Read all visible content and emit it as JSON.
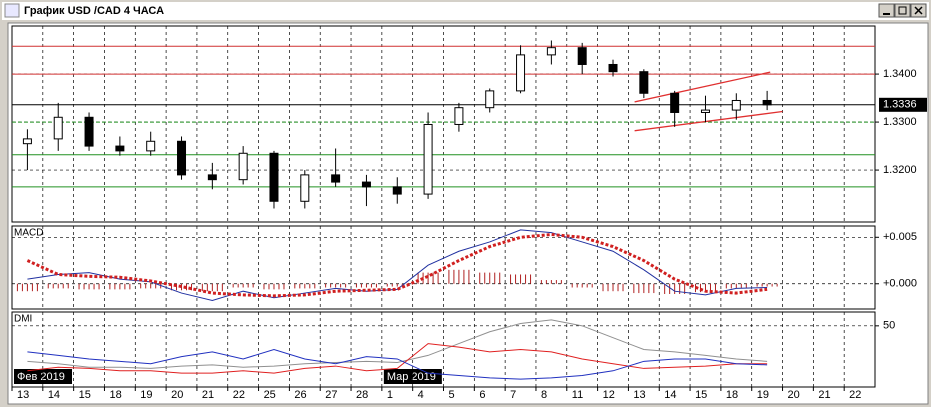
{
  "window_title": "График USD /CAD  4 ЧАСА",
  "chart_data": [
    {
      "type": "candlestick",
      "categories": [
        "13",
        "14",
        "15",
        "18",
        "19",
        "20",
        "21",
        "22",
        "25",
        "26",
        "27",
        "28",
        "1",
        "4",
        "5",
        "6",
        "7",
        "8",
        "11",
        "12",
        "13",
        "14",
        "15",
        "18",
        "19",
        "20",
        "21",
        "22"
      ],
      "month_labels": [
        {
          "index": 0,
          "label": "Фев 2019"
        },
        {
          "index": 12,
          "label": "Мар 2019"
        }
      ],
      "open": [
        1.3255,
        1.3265,
        1.331,
        1.325,
        1.324,
        1.326,
        1.319,
        1.318,
        1.3235,
        1.3135,
        1.319,
        1.3175,
        1.3165,
        1.315,
        1.3295,
        1.333,
        1.3365,
        1.344,
        1.3455,
        1.342,
        1.3405,
        1.336,
        1.332,
        1.3325,
        1.3345,
        null,
        null,
        null
      ],
      "high": [
        1.3285,
        1.334,
        1.332,
        1.327,
        1.328,
        1.327,
        1.3215,
        1.325,
        1.324,
        1.32,
        1.3245,
        1.319,
        1.3185,
        1.332,
        1.334,
        1.337,
        1.346,
        1.347,
        1.3465,
        1.343,
        1.341,
        1.3365,
        1.3355,
        1.336,
        1.3365,
        null,
        null,
        null
      ],
      "low": [
        1.32,
        1.324,
        1.324,
        1.323,
        1.323,
        1.318,
        1.316,
        1.317,
        1.312,
        1.312,
        1.3165,
        1.3125,
        1.313,
        1.314,
        1.328,
        1.332,
        1.336,
        1.342,
        1.34,
        1.3395,
        1.335,
        1.329,
        1.33,
        1.3305,
        1.3325,
        null,
        null,
        null
      ],
      "close": [
        1.3265,
        1.331,
        1.325,
        1.324,
        1.326,
        1.319,
        1.318,
        1.3235,
        1.3135,
        1.319,
        1.3175,
        1.3165,
        1.315,
        1.3295,
        1.333,
        1.3365,
        1.344,
        1.3455,
        1.342,
        1.3405,
        1.336,
        1.332,
        1.3325,
        1.3345,
        1.3336,
        null,
        null,
        null
      ],
      "ylim": [
        1.3096,
        1.3496
      ],
      "yticks": [
        {
          "value": 1.32,
          "label": "1.3200"
        },
        {
          "value": 1.33,
          "label": "1.3300"
        },
        {
          "value": 1.34,
          "label": "1.3400"
        }
      ],
      "last_price": 1.3336,
      "levels": [
        {
          "value": 1.3458,
          "color": "#d03030"
        },
        {
          "value": 1.34,
          "color": "#d03030"
        },
        {
          "value": 1.33,
          "color": "#209020",
          "dashed": true
        },
        {
          "value": 1.3232,
          "color": "#209020"
        },
        {
          "value": 1.3165,
          "color": "#209020"
        }
      ],
      "trendlines": [
        {
          "x": [
            20.2,
            24.6
          ],
          "y": [
            1.3342,
            1.3404
          ],
          "color": "#e03030"
        },
        {
          "x": [
            20.2,
            25.0
          ],
          "y": [
            1.3282,
            1.3322
          ],
          "color": "#e03030"
        }
      ],
      "grid": true
    },
    {
      "type": "line",
      "title": "MACD",
      "series": [
        {
          "color": "#b02020",
          "style": "bars",
          "values": [
            -0.0008,
            -0.0005,
            -0.0006,
            -0.0006,
            -0.0005,
            -0.0007,
            -0.0008,
            -0.0004,
            -0.0006,
            -0.0005,
            -0.0004,
            -0.0004,
            -0.0003,
            0.0012,
            0.0015,
            0.0012,
            0.001,
            0.0004,
            -0.0004,
            -0.0008,
            -0.001,
            -0.0011,
            -0.0009,
            -0.0005,
            -0.0003,
            null,
            null,
            null
          ]
        },
        {
          "color": "#2030a0",
          "values": [
            0.0005,
            0.001,
            0.0012,
            0.0005,
            0.0002,
            -0.001,
            -0.0018,
            -0.0008,
            -0.0015,
            -0.001,
            -0.0005,
            -0.0008,
            -0.0006,
            0.002,
            0.0035,
            0.0045,
            0.0058,
            0.0055,
            0.0045,
            0.0035,
            0.0015,
            -0.0008,
            -0.0012,
            -0.0005,
            -0.0004,
            null,
            null,
            null
          ]
        },
        {
          "color": "#d02020",
          "style": "dotted",
          "values": [
            0.0025,
            0.001,
            0.0008,
            0.0007,
            0.0003,
            -0.0003,
            -0.001,
            -0.0012,
            -0.0013,
            -0.0012,
            -0.0008,
            -0.0007,
            -0.0006,
            0.0008,
            0.0025,
            0.004,
            0.005,
            0.0053,
            0.005,
            0.004,
            0.0025,
            0.0005,
            -0.0008,
            -0.001,
            -0.0006,
            null,
            null,
            null
          ]
        }
      ],
      "ylim": [
        -0.0025,
        0.006
      ],
      "yticks": [
        {
          "value": 0,
          "label": "+0.000"
        },
        {
          "value": 0.005,
          "label": "+0.005"
        }
      ],
      "grid": true
    },
    {
      "type": "line",
      "title": "DMI",
      "series": [
        {
          "color": "#909090",
          "values": [
            20,
            18,
            15,
            15,
            14,
            16,
            17,
            15,
            16,
            18,
            19,
            20,
            19,
            25,
            35,
            45,
            52,
            55,
            50,
            40,
            30,
            28,
            25,
            22,
            20,
            null,
            null,
            null
          ]
        },
        {
          "color": "#e02020",
          "values": [
            12,
            15,
            14,
            12,
            12,
            10,
            10,
            12,
            10,
            14,
            16,
            12,
            14,
            35,
            32,
            28,
            30,
            28,
            22,
            18,
            14,
            15,
            16,
            18,
            18,
            null,
            null,
            null
          ]
        },
        {
          "color": "#2030c0",
          "values": [
            28,
            25,
            22,
            20,
            18,
            24,
            28,
            22,
            30,
            22,
            18,
            24,
            22,
            10,
            8,
            6,
            5,
            6,
            8,
            12,
            20,
            22,
            22,
            18,
            17,
            null,
            null,
            null
          ]
        }
      ],
      "ylim": [
        0,
        60
      ],
      "yticks": [
        50
      ],
      "grid": true
    }
  ]
}
